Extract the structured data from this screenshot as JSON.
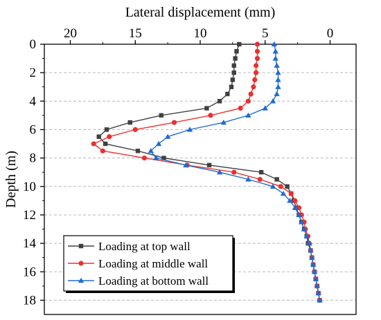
{
  "chart_data": {
    "type": "line",
    "xlabel": "Lateral displacement (mm)",
    "ylabel": "Depth (m)",
    "xlim": [
      22,
      -2
    ],
    "ylim": [
      0,
      19
    ],
    "x_axis_position": "top",
    "y_inverted": true,
    "x_reversed": true,
    "grid": "horizontal-dashed",
    "legend_position": "bottom-left",
    "x_ticks": [
      20,
      15,
      10,
      5,
      0
    ],
    "x_tick_labels": [
      "20",
      "15",
      "10",
      "5",
      "0"
    ],
    "y_ticks": [
      0,
      2,
      4,
      6,
      8,
      10,
      12,
      14,
      16,
      18
    ],
    "y_tick_labels": [
      "0",
      "2",
      "4",
      "6",
      "8",
      "10",
      "12",
      "14",
      "16",
      "18"
    ],
    "series": [
      {
        "name": "Loading at top wall",
        "color": "#404040",
        "marker": "square",
        "depth": [
          0,
          0.5,
          1,
          1.5,
          2,
          2.5,
          3,
          3.5,
          4,
          4.5,
          5,
          5.5,
          6,
          6.5,
          7,
          7.5,
          8,
          8.5,
          9,
          9.5,
          10,
          10.5,
          11,
          11.5,
          12,
          12.5,
          13,
          13.5,
          14,
          14.5,
          15,
          15.5,
          16,
          16.5,
          17,
          17.5,
          18
        ],
        "displacement": [
          7.0,
          7.2,
          7.3,
          7.4,
          7.4,
          7.5,
          7.6,
          7.9,
          8.5,
          9.5,
          13.0,
          15.4,
          17.2,
          17.8,
          17.3,
          14.8,
          12.8,
          9.3,
          5.3,
          4.1,
          3.3,
          3.0,
          2.8,
          2.6,
          2.4,
          2.2,
          2.0,
          1.8,
          1.7,
          1.5,
          1.4,
          1.3,
          1.2,
          1.1,
          1.0,
          0.9,
          0.8
        ]
      },
      {
        "name": "Loading at middle wall",
        "color": "#e8312f",
        "marker": "circle",
        "depth": [
          0,
          0.5,
          1,
          1.5,
          2,
          2.5,
          3,
          3.5,
          4,
          4.5,
          5,
          5.5,
          6,
          6.5,
          7,
          7.5,
          8,
          8.5,
          9,
          9.5,
          10,
          10.5,
          11,
          11.5,
          12,
          12.5,
          13,
          13.5,
          14,
          14.5,
          15,
          15.5,
          16,
          16.5,
          17,
          17.5,
          18
        ],
        "displacement": [
          5.6,
          5.6,
          5.6,
          5.7,
          5.7,
          5.8,
          5.9,
          6.1,
          6.3,
          6.9,
          9.2,
          12.0,
          15.0,
          17.0,
          18.2,
          17.5,
          14.3,
          11.0,
          7.4,
          5.4,
          3.8,
          3.0,
          2.7,
          2.4,
          2.2,
          2.0,
          1.9,
          1.7,
          1.6,
          1.5,
          1.4,
          1.3,
          1.2,
          1.1,
          1.0,
          0.9,
          0.8
        ]
      },
      {
        "name": "Loading at bottom wall",
        "color": "#1f6bd1",
        "marker": "triangle",
        "depth": [
          0,
          0.5,
          1,
          1.5,
          2,
          2.5,
          3,
          3.5,
          4,
          4.5,
          5,
          5.5,
          6,
          6.5,
          7,
          7.5,
          8,
          8.5,
          9,
          9.5,
          10,
          10.5,
          11,
          11.5,
          12,
          12.5,
          13,
          13.5,
          14,
          14.5,
          15,
          15.5,
          16,
          16.5,
          17,
          17.5,
          18
        ],
        "displacement": [
          4.3,
          4.2,
          4.2,
          4.1,
          4.0,
          4.0,
          4.0,
          4.1,
          4.4,
          5.0,
          6.3,
          8.2,
          10.8,
          12.5,
          13.2,
          13.8,
          13.4,
          11.1,
          8.5,
          6.3,
          4.4,
          3.6,
          3.1,
          2.7,
          2.4,
          2.2,
          2.0,
          1.8,
          1.6,
          1.5,
          1.4,
          1.3,
          1.2,
          1.1,
          1.0,
          0.9,
          0.8
        ]
      }
    ]
  }
}
